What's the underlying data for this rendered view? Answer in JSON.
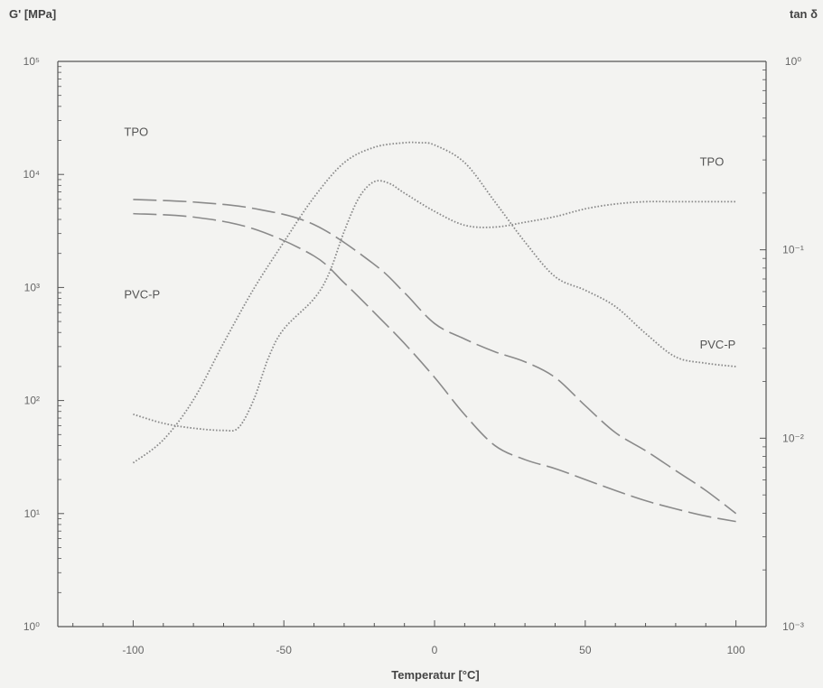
{
  "chart_data": {
    "type": "line",
    "title": "",
    "xlabel": "Temperatur [°C]",
    "ylabel_left": "G' [MPa]",
    "ylabel_right": "tan δ",
    "xlim": [
      -125,
      110
    ],
    "ylim_left": [
      1,
      100000
    ],
    "ylim_right": [
      0.001,
      1
    ],
    "yscale_left": "log",
    "yscale_right": "log",
    "x_ticks": [
      -100,
      -50,
      0,
      50,
      100
    ],
    "x_tick_labels": [
      "-100",
      "-50",
      "0",
      "50",
      "100"
    ],
    "y_left_tick_values": [
      1,
      10,
      100,
      1000,
      10000,
      100000
    ],
    "y_left_tick_labels": [
      "10⁰",
      "10¹",
      "10²",
      "10³",
      "10⁴",
      "10⁵"
    ],
    "y_right_tick_values": [
      0.001,
      0.01,
      0.1,
      1
    ],
    "y_right_tick_labels": [
      "10⁻³",
      "10⁻²",
      "10⁻¹",
      "10⁰"
    ],
    "grid": false,
    "series": [
      {
        "axis": "left",
        "style": "long-dash",
        "points": [
          [
            -100,
            6000
          ],
          [
            -80,
            5700
          ],
          [
            -60,
            5000
          ],
          [
            -40,
            3600
          ],
          [
            -20,
            1600
          ],
          [
            -10,
            900
          ],
          [
            0,
            480
          ],
          [
            10,
            350
          ],
          [
            20,
            270
          ],
          [
            30,
            220
          ],
          [
            40,
            160
          ],
          [
            50,
            90
          ],
          [
            60,
            52
          ],
          [
            70,
            36
          ],
          [
            80,
            24
          ],
          [
            90,
            16
          ],
          [
            100,
            10
          ]
        ]
      },
      {
        "axis": "left",
        "style": "long-dash",
        "points": [
          [
            -100,
            4500
          ],
          [
            -80,
            4200
          ],
          [
            -60,
            3300
          ],
          [
            -40,
            1900
          ],
          [
            -30,
            1100
          ],
          [
            -20,
            600
          ],
          [
            -10,
            320
          ],
          [
            0,
            160
          ],
          [
            10,
            75
          ],
          [
            20,
            40
          ],
          [
            30,
            30
          ],
          [
            40,
            25
          ],
          [
            50,
            20
          ],
          [
            60,
            16
          ],
          [
            70,
            13
          ],
          [
            80,
            11
          ],
          [
            90,
            9.5
          ],
          [
            100,
            8.5
          ]
        ]
      },
      {
        "axis": "right",
        "style": "dotted",
        "points": [
          [
            -100,
            0.0074
          ],
          [
            -90,
            0.0098
          ],
          [
            -80,
            0.016
          ],
          [
            -70,
            0.032
          ],
          [
            -60,
            0.062
          ],
          [
            -50,
            0.11
          ],
          [
            -40,
            0.19
          ],
          [
            -30,
            0.29
          ],
          [
            -20,
            0.35
          ],
          [
            -10,
            0.37
          ],
          [
            -5,
            0.37
          ],
          [
            0,
            0.36
          ],
          [
            10,
            0.29
          ],
          [
            20,
            0.18
          ],
          [
            30,
            0.11
          ],
          [
            40,
            0.072
          ],
          [
            50,
            0.061
          ],
          [
            60,
            0.05
          ],
          [
            70,
            0.036
          ],
          [
            80,
            0.027
          ],
          [
            90,
            0.025
          ],
          [
            100,
            0.024
          ]
        ]
      },
      {
        "axis": "right",
        "style": "dotted",
        "points": [
          [
            -100,
            0.0134
          ],
          [
            -90,
            0.012
          ],
          [
            -80,
            0.0113
          ],
          [
            -70,
            0.011
          ],
          [
            -65,
            0.0114
          ],
          [
            -60,
            0.016
          ],
          [
            -55,
            0.027
          ],
          [
            -50,
            0.038
          ],
          [
            -40,
            0.055
          ],
          [
            -35,
            0.075
          ],
          [
            -30,
            0.125
          ],
          [
            -25,
            0.19
          ],
          [
            -20,
            0.23
          ],
          [
            -15,
            0.225
          ],
          [
            -10,
            0.2
          ],
          [
            0,
            0.16
          ],
          [
            10,
            0.135
          ],
          [
            20,
            0.132
          ],
          [
            30,
            0.14
          ],
          [
            40,
            0.15
          ],
          [
            50,
            0.165
          ],
          [
            60,
            0.175
          ],
          [
            70,
            0.18
          ],
          [
            80,
            0.18
          ],
          [
            90,
            0.18
          ],
          [
            100,
            0.18
          ]
        ]
      }
    ],
    "annotations": [
      {
        "text": "TPO",
        "x": -103,
        "y": 22000,
        "axis": "left"
      },
      {
        "text": "PVC-P",
        "x": -103,
        "y": 800,
        "axis": "left"
      },
      {
        "text": "TPO",
        "x": 88,
        "y": 0.28,
        "axis": "right"
      },
      {
        "text": "PVC-P",
        "x": 88,
        "y": 0.03,
        "axis": "right"
      }
    ],
    "colors": {
      "line": "#8a8a8a",
      "axis": "#555555",
      "background": "#f3f3f1"
    }
  }
}
